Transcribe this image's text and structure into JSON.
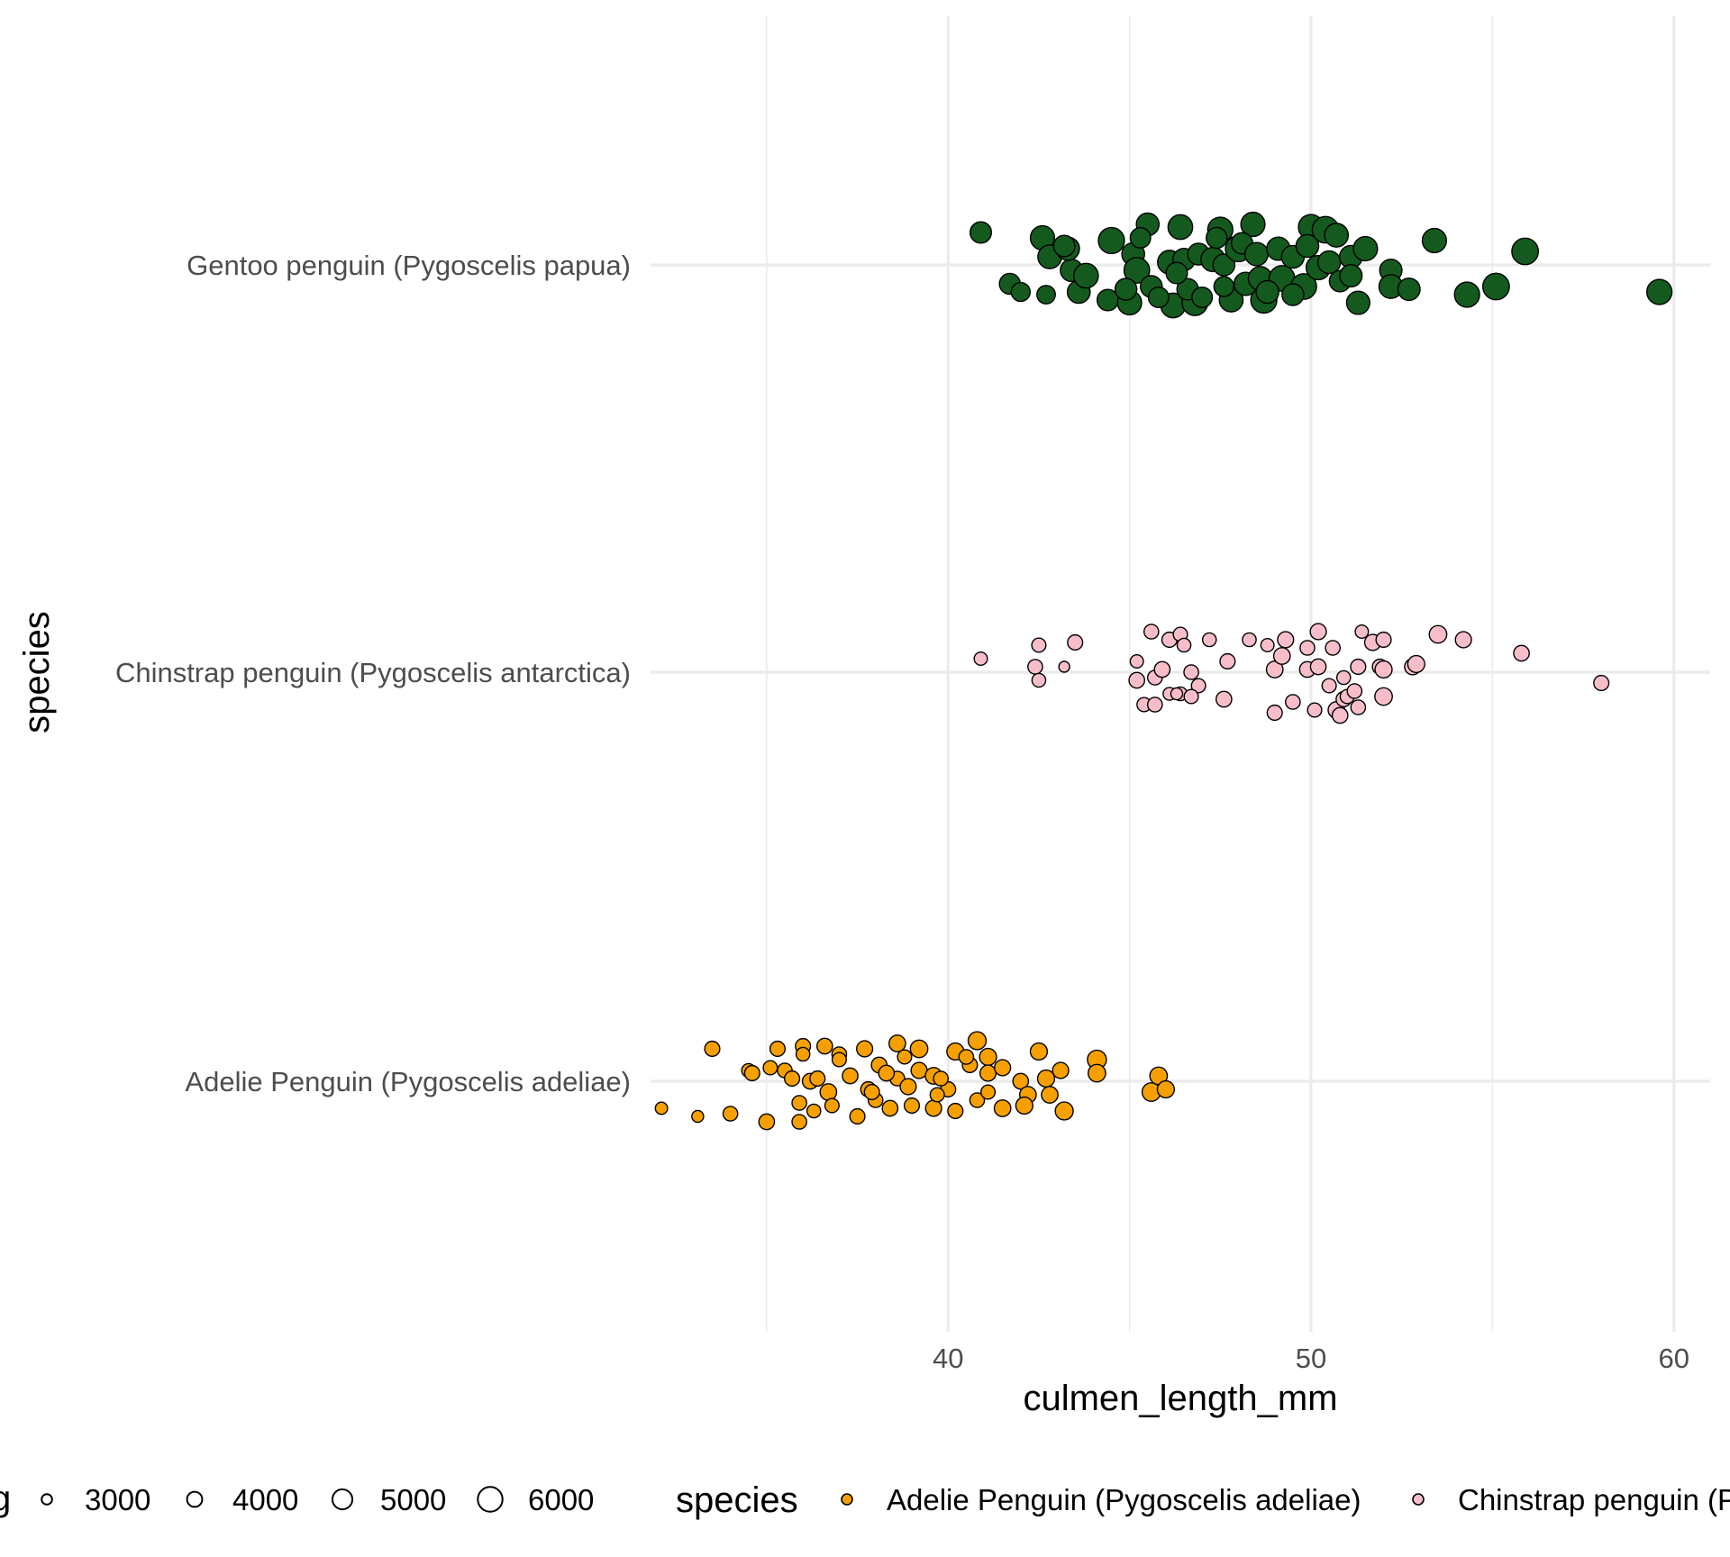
{
  "chart_data": {
    "type": "scatter",
    "title": "",
    "xlabel": "culmen_length_mm",
    "ylabel": "species",
    "xlim": [
      31.8,
      61
    ],
    "x_ticks": [
      40,
      50,
      60
    ],
    "x_minor_ticks": [
      35,
      45,
      55
    ],
    "categories": [
      "Adelie Penguin (Pygoscelis adeliae)",
      "Chinstrap penguin (Pygoscelis antarctica)",
      "Gentoo penguin (Pygoscelis papua)"
    ],
    "grid": true,
    "legend_position": "bottom",
    "legend": {
      "size_title": "body_mass_g",
      "size_title_visible": "g",
      "size_breaks": [
        "3000",
        "4000",
        "5000",
        "6000"
      ],
      "color_title": "species",
      "color_entries": [
        {
          "label": "Adelie Penguin (Pygoscelis adeliae)",
          "color": "#F5A000"
        },
        {
          "label": "Chinstrap penguin (P",
          "color": "#F7BECA"
        }
      ]
    },
    "colors": {
      "Adelie Penguin (Pygoscelis adeliae)": "#F5A000",
      "Chinstrap penguin (Pygoscelis antarctica)": "#F7BECA",
      "Gentoo penguin (Pygoscelis papua)": "#145A1E",
      "point_outline": "#000000"
    },
    "series": [
      {
        "name": "Gentoo penguin (Pygoscelis papua)",
        "points": [
          [
            40.9,
            0.12,
            4900
          ],
          [
            42.6,
            0.1,
            5500
          ],
          [
            43.4,
            -0.02,
            5100
          ],
          [
            44.5,
            0.09,
            5900
          ],
          [
            45.5,
            0.15,
            5200
          ],
          [
            46.4,
            0.14,
            5600
          ],
          [
            47.5,
            0.13,
            5700
          ],
          [
            48.4,
            0.15,
            5500
          ],
          [
            50.0,
            0.14,
            5700
          ],
          [
            50.4,
            0.13,
            6000
          ],
          [
            53.4,
            0.09,
            5500
          ],
          [
            55.9,
            0.05,
            6000
          ],
          [
            59.6,
            -0.1,
            5700
          ],
          [
            41.7,
            -0.07,
            4800
          ],
          [
            42.0,
            -0.1,
            4400
          ],
          [
            42.7,
            -0.11,
            4300
          ],
          [
            43.6,
            -0.1,
            5200
          ],
          [
            44.4,
            -0.13,
            4900
          ],
          [
            45.0,
            -0.14,
            5500
          ],
          [
            46.2,
            -0.15,
            5600
          ],
          [
            46.8,
            -0.14,
            5800
          ],
          [
            47.8,
            -0.13,
            5400
          ],
          [
            48.7,
            -0.13,
            5900
          ],
          [
            51.3,
            -0.14,
            5300
          ],
          [
            52.2,
            -0.02,
            5100
          ],
          [
            52.2,
            -0.08,
            5400
          ],
          [
            52.7,
            -0.09,
            5100
          ],
          [
            54.3,
            -0.11,
            5700
          ],
          [
            55.1,
            -0.08,
            6000
          ],
          [
            42.8,
            0.03,
            5400
          ],
          [
            43.3,
            0.06,
            5300
          ],
          [
            43.8,
            -0.04,
            5600
          ],
          [
            45.1,
            0.04,
            5200
          ],
          [
            45.2,
            -0.02,
            5800
          ],
          [
            45.6,
            -0.08,
            5000
          ],
          [
            46.1,
            0.01,
            5400
          ],
          [
            46.5,
            0.02,
            5100
          ],
          [
            46.6,
            -0.09,
            4900
          ],
          [
            46.9,
            0.04,
            5000
          ],
          [
            47.3,
            0.02,
            5500
          ],
          [
            47.6,
            0.0,
            5000
          ],
          [
            48.0,
            0.06,
            5900
          ],
          [
            48.1,
            0.08,
            4900
          ],
          [
            48.2,
            -0.07,
            5300
          ],
          [
            48.5,
            0.04,
            5300
          ],
          [
            48.6,
            -0.05,
            5400
          ],
          [
            49.1,
            0.06,
            5300
          ],
          [
            49.2,
            -0.05,
            5800
          ],
          [
            49.5,
            0.03,
            5200
          ],
          [
            49.8,
            -0.08,
            5800
          ],
          [
            49.9,
            0.07,
            5200
          ],
          [
            50.2,
            -0.01,
            5500
          ],
          [
            50.5,
            0.01,
            5200
          ],
          [
            50.7,
            0.11,
            5400
          ],
          [
            51.1,
            0.03,
            5200
          ],
          [
            51.5,
            0.06,
            5500
          ],
          [
            43.2,
            0.07,
            4900
          ],
          [
            44.9,
            -0.09,
            5000
          ],
          [
            45.8,
            -0.12,
            4700
          ],
          [
            46.3,
            -0.03,
            4900
          ],
          [
            47.0,
            -0.12,
            4700
          ],
          [
            47.6,
            -0.08,
            4600
          ],
          [
            48.8,
            -0.1,
            5200
          ],
          [
            49.5,
            -0.11,
            5000
          ],
          [
            50.8,
            -0.06,
            4900
          ],
          [
            51.1,
            -0.04,
            5100
          ],
          [
            47.4,
            0.1,
            4800
          ],
          [
            45.3,
            0.1,
            4700
          ]
        ]
      },
      {
        "name": "Chinstrap penguin (Pygoscelis antarctica)",
        "points": [
          [
            40.9,
            0.05,
            3200
          ],
          [
            42.5,
            0.1,
            3400
          ],
          [
            43.5,
            0.11,
            3600
          ],
          [
            42.4,
            0.02,
            3500
          ],
          [
            42.5,
            -0.03,
            3300
          ],
          [
            43.2,
            0.02,
            2700
          ],
          [
            45.2,
            0.04,
            3200
          ],
          [
            45.6,
            0.15,
            3500
          ],
          [
            46.1,
            0.12,
            3600
          ],
          [
            46.4,
            0.14,
            3400
          ],
          [
            46.5,
            0.1,
            3300
          ],
          [
            47.2,
            0.12,
            3300
          ],
          [
            47.7,
            0.04,
            3600
          ],
          [
            48.3,
            0.12,
            3300
          ],
          [
            48.8,
            0.1,
            3200
          ],
          [
            49.3,
            0.12,
            3800
          ],
          [
            49.9,
            0.09,
            3500
          ],
          [
            50.2,
            0.15,
            3800
          ],
          [
            50.6,
            0.09,
            3500
          ],
          [
            51.4,
            0.15,
            3200
          ],
          [
            51.7,
            0.11,
            3800
          ],
          [
            52.0,
            0.12,
            3600
          ],
          [
            53.5,
            0.14,
            4100
          ],
          [
            54.2,
            0.12,
            3800
          ],
          [
            55.8,
            0.07,
            3700
          ],
          [
            58.0,
            -0.04,
            3600
          ],
          [
            45.2,
            -0.03,
            3700
          ],
          [
            45.7,
            -0.02,
            3500
          ],
          [
            45.9,
            0.01,
            3700
          ],
          [
            46.7,
            0.0,
            3500
          ],
          [
            46.9,
            -0.05,
            3400
          ],
          [
            47.6,
            -0.1,
            3700
          ],
          [
            49.0,
            0.01,
            3900
          ],
          [
            49.2,
            0.06,
            3900
          ],
          [
            49.9,
            0.01,
            3700
          ],
          [
            50.2,
            0.02,
            3700
          ],
          [
            50.5,
            -0.05,
            3400
          ],
          [
            50.9,
            -0.02,
            3300
          ],
          [
            51.3,
            0.02,
            3600
          ],
          [
            51.9,
            0.02,
            3600
          ],
          [
            52.0,
            0.01,
            4000
          ],
          [
            52.8,
            0.02,
            3800
          ],
          [
            52.9,
            0.03,
            4000
          ],
          [
            45.4,
            -0.12,
            3400
          ],
          [
            45.7,
            -0.12,
            3500
          ],
          [
            46.4,
            -0.08,
            3300
          ],
          [
            46.7,
            -0.09,
            3400
          ],
          [
            46.1,
            -0.08,
            3100
          ],
          [
            46.3,
            -0.08,
            2900
          ],
          [
            49.0,
            -0.15,
            3600
          ],
          [
            49.5,
            -0.11,
            3500
          ],
          [
            50.1,
            -0.14,
            3400
          ],
          [
            50.7,
            -0.14,
            3900
          ],
          [
            50.8,
            -0.16,
            3700
          ],
          [
            50.9,
            -0.1,
            3600
          ],
          [
            51.3,
            -0.13,
            3500
          ],
          [
            52.0,
            -0.09,
            4100
          ],
          [
            51.0,
            -0.09,
            3400
          ],
          [
            51.2,
            -0.07,
            3500
          ]
        ]
      },
      {
        "name": "Adelie Penguin (Pygoscelis adeliae)",
        "points": [
          [
            32.1,
            -0.1,
            3000
          ],
          [
            33.1,
            -0.13,
            2900
          ],
          [
            33.5,
            0.12,
            3600
          ],
          [
            34.0,
            -0.12,
            3500
          ],
          [
            34.5,
            0.04,
            3300
          ],
          [
            35.0,
            -0.15,
            3700
          ],
          [
            35.3,
            0.12,
            3600
          ],
          [
            35.9,
            -0.15,
            3500
          ],
          [
            36.0,
            0.13,
            3600
          ],
          [
            36.6,
            0.13,
            3700
          ],
          [
            37.0,
            0.1,
            3500
          ],
          [
            37.7,
            0.12,
            3800
          ],
          [
            38.6,
            0.14,
            3900
          ],
          [
            39.2,
            0.12,
            4100
          ],
          [
            40.2,
            0.11,
            4000
          ],
          [
            40.8,
            0.15,
            4200
          ],
          [
            41.1,
            0.09,
            4000
          ],
          [
            42.5,
            0.11,
            4000
          ],
          [
            43.2,
            -0.11,
            4200
          ],
          [
            44.1,
            0.08,
            4400
          ],
          [
            44.1,
            0.03,
            4100
          ],
          [
            45.6,
            -0.04,
            4300
          ],
          [
            45.8,
            0.02,
            4100
          ],
          [
            46.0,
            -0.03,
            4000
          ],
          [
            34.6,
            0.03,
            3600
          ],
          [
            35.1,
            0.05,
            3400
          ],
          [
            35.5,
            0.04,
            3500
          ],
          [
            35.7,
            0.01,
            3600
          ],
          [
            36.2,
            0.0,
            3700
          ],
          [
            36.4,
            0.01,
            3600
          ],
          [
            36.7,
            -0.04,
            3900
          ],
          [
            37.3,
            0.02,
            3700
          ],
          [
            37.8,
            -0.03,
            3600
          ],
          [
            38.1,
            0.06,
            3700
          ],
          [
            38.6,
            0.01,
            3500
          ],
          [
            38.9,
            -0.02,
            3800
          ],
          [
            39.2,
            0.04,
            3800
          ],
          [
            39.6,
            0.02,
            3900
          ],
          [
            40.0,
            -0.03,
            3600
          ],
          [
            40.6,
            0.06,
            3600
          ],
          [
            41.1,
            0.03,
            3800
          ],
          [
            41.5,
            0.05,
            3800
          ],
          [
            42.0,
            0.0,
            3700
          ],
          [
            42.2,
            -0.05,
            3900
          ],
          [
            42.7,
            0.01,
            4000
          ],
          [
            43.1,
            0.04,
            3800
          ],
          [
            35.9,
            -0.08,
            3500
          ],
          [
            36.3,
            -0.11,
            3300
          ],
          [
            36.8,
            -0.09,
            3400
          ],
          [
            37.5,
            -0.13,
            3600
          ],
          [
            38.0,
            -0.07,
            3500
          ],
          [
            38.4,
            -0.1,
            3700
          ],
          [
            39.0,
            -0.09,
            3600
          ],
          [
            39.6,
            -0.1,
            3800
          ],
          [
            40.2,
            -0.11,
            3600
          ],
          [
            40.8,
            -0.07,
            3500
          ],
          [
            41.5,
            -0.1,
            3900
          ],
          [
            42.1,
            -0.09,
            4000
          ],
          [
            42.8,
            -0.05,
            3900
          ],
          [
            37.9,
            -0.04,
            3600
          ],
          [
            38.3,
            0.03,
            3700
          ],
          [
            39.7,
            -0.05,
            3400
          ],
          [
            41.1,
            -0.04,
            3400
          ],
          [
            36.0,
            0.1,
            3300
          ],
          [
            37.0,
            0.08,
            3400
          ],
          [
            38.8,
            0.09,
            3400
          ],
          [
            40.5,
            0.09,
            3500
          ],
          [
            39.8,
            0.01,
            3500
          ]
        ]
      }
    ]
  }
}
